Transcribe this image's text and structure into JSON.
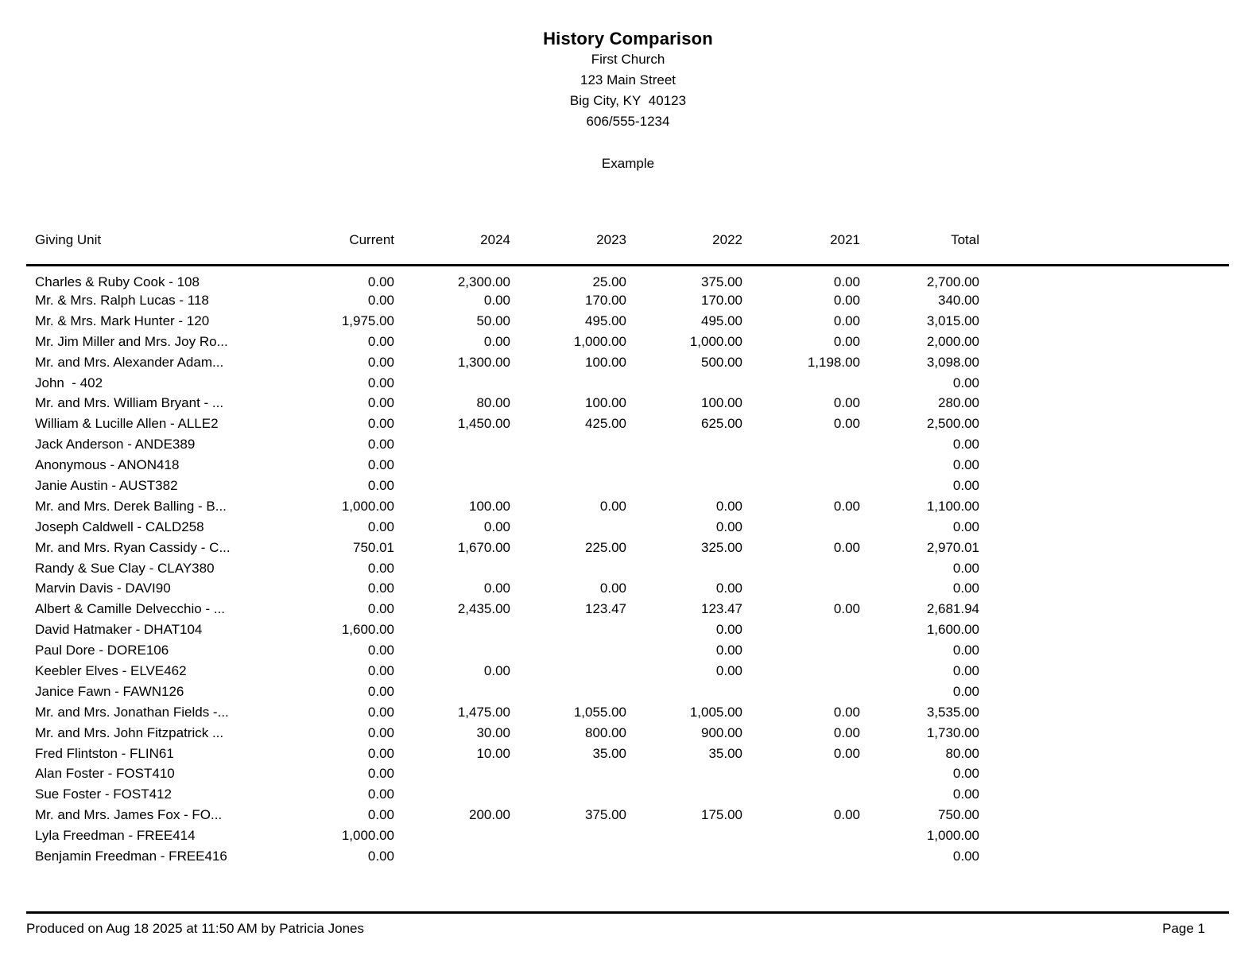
{
  "header": {
    "title": "History Comparison",
    "org_name": "First Church",
    "address": "123 Main Street",
    "city_state_zip": "Big City, KY  40123",
    "phone": "606/555-1234",
    "subtitle": "Example"
  },
  "table": {
    "columns": [
      "Giving Unit",
      "Current",
      "2024",
      "2023",
      "2022",
      "2021",
      "Total"
    ],
    "rows": [
      {
        "name": "Charles & Ruby Cook - 108",
        "values": [
          "0.00",
          "2,300.00",
          "25.00",
          "375.00",
          "0.00",
          "2,700.00"
        ]
      },
      {
        "name": "Mr. & Mrs. Ralph Lucas - 118",
        "values": [
          "0.00",
          "0.00",
          "170.00",
          "170.00",
          "0.00",
          "340.00"
        ]
      },
      {
        "name": "Mr. & Mrs. Mark Hunter - 120",
        "values": [
          "1,975.00",
          "50.00",
          "495.00",
          "495.00",
          "0.00",
          "3,015.00"
        ]
      },
      {
        "name": "Mr. Jim Miller and Mrs. Joy Ro...",
        "values": [
          "0.00",
          "0.00",
          "1,000.00",
          "1,000.00",
          "0.00",
          "2,000.00"
        ]
      },
      {
        "name": "Mr. and Mrs. Alexander Adam...",
        "values": [
          "0.00",
          "1,300.00",
          "100.00",
          "500.00",
          "1,198.00",
          "3,098.00"
        ]
      },
      {
        "name": "John  - 402",
        "values": [
          "0.00",
          "",
          "",
          "",
          "",
          "0.00"
        ]
      },
      {
        "name": "Mr. and Mrs. William Bryant - ...",
        "values": [
          "0.00",
          "80.00",
          "100.00",
          "100.00",
          "0.00",
          "280.00"
        ]
      },
      {
        "name": "William & Lucille Allen - ALLE2",
        "values": [
          "0.00",
          "1,450.00",
          "425.00",
          "625.00",
          "0.00",
          "2,500.00"
        ]
      },
      {
        "name": "Jack Anderson - ANDE389",
        "values": [
          "0.00",
          "",
          "",
          "",
          "",
          "0.00"
        ]
      },
      {
        "name": "Anonymous - ANON418",
        "values": [
          "0.00",
          "",
          "",
          "",
          "",
          "0.00"
        ]
      },
      {
        "name": "Janie Austin - AUST382",
        "values": [
          "0.00",
          "",
          "",
          "",
          "",
          "0.00"
        ]
      },
      {
        "name": "Mr. and Mrs. Derek Balling - B...",
        "values": [
          "1,000.00",
          "100.00",
          "0.00",
          "0.00",
          "0.00",
          "1,100.00"
        ]
      },
      {
        "name": "Joseph Caldwell - CALD258",
        "values": [
          "0.00",
          "0.00",
          "",
          "0.00",
          "",
          "0.00"
        ]
      },
      {
        "name": "Mr. and Mrs. Ryan Cassidy - C...",
        "values": [
          "750.01",
          "1,670.00",
          "225.00",
          "325.00",
          "0.00",
          "2,970.01"
        ]
      },
      {
        "name": "Randy & Sue Clay - CLAY380",
        "values": [
          "0.00",
          "",
          "",
          "",
          "",
          "0.00"
        ]
      },
      {
        "name": "Marvin Davis - DAVI90",
        "values": [
          "0.00",
          "0.00",
          "0.00",
          "0.00",
          "",
          "0.00"
        ]
      },
      {
        "name": "Albert & Camille Delvecchio - ...",
        "values": [
          "0.00",
          "2,435.00",
          "123.47",
          "123.47",
          "0.00",
          "2,681.94"
        ]
      },
      {
        "name": "David Hatmaker - DHAT104",
        "values": [
          "1,600.00",
          "",
          "",
          "0.00",
          "",
          "1,600.00"
        ]
      },
      {
        "name": "Paul Dore - DORE106",
        "values": [
          "0.00",
          "",
          "",
          "0.00",
          "",
          "0.00"
        ]
      },
      {
        "name": "Keebler Elves - ELVE462",
        "values": [
          "0.00",
          "0.00",
          "",
          "0.00",
          "",
          "0.00"
        ]
      },
      {
        "name": "Janice Fawn - FAWN126",
        "values": [
          "0.00",
          "",
          "",
          "",
          "",
          "0.00"
        ]
      },
      {
        "name": "Mr. and Mrs. Jonathan Fields -...",
        "values": [
          "0.00",
          "1,475.00",
          "1,055.00",
          "1,005.00",
          "0.00",
          "3,535.00"
        ]
      },
      {
        "name": "Mr. and Mrs. John Fitzpatrick ...",
        "values": [
          "0.00",
          "30.00",
          "800.00",
          "900.00",
          "0.00",
          "1,730.00"
        ]
      },
      {
        "name": "Fred Flintston - FLIN61",
        "values": [
          "0.00",
          "10.00",
          "35.00",
          "35.00",
          "0.00",
          "80.00"
        ]
      },
      {
        "name": "Alan Foster - FOST410",
        "values": [
          "0.00",
          "",
          "",
          "",
          "",
          "0.00"
        ]
      },
      {
        "name": "Sue Foster - FOST412",
        "values": [
          "0.00",
          "",
          "",
          "",
          "",
          "0.00"
        ]
      },
      {
        "name": "Mr. and Mrs. James Fox - FO...",
        "values": [
          "0.00",
          "200.00",
          "375.00",
          "175.00",
          "0.00",
          "750.00"
        ]
      },
      {
        "name": "Lyla Freedman - FREE414",
        "values": [
          "1,000.00",
          "",
          "",
          "",
          "",
          "1,000.00"
        ]
      },
      {
        "name": "Benjamin Freedman - FREE416",
        "values": [
          "0.00",
          "",
          "",
          "",
          "",
          "0.00"
        ]
      }
    ]
  },
  "footer": {
    "produced": "Produced on Aug 18 2025 at 11:50 AM by Patricia Jones",
    "page": "Page 1"
  }
}
